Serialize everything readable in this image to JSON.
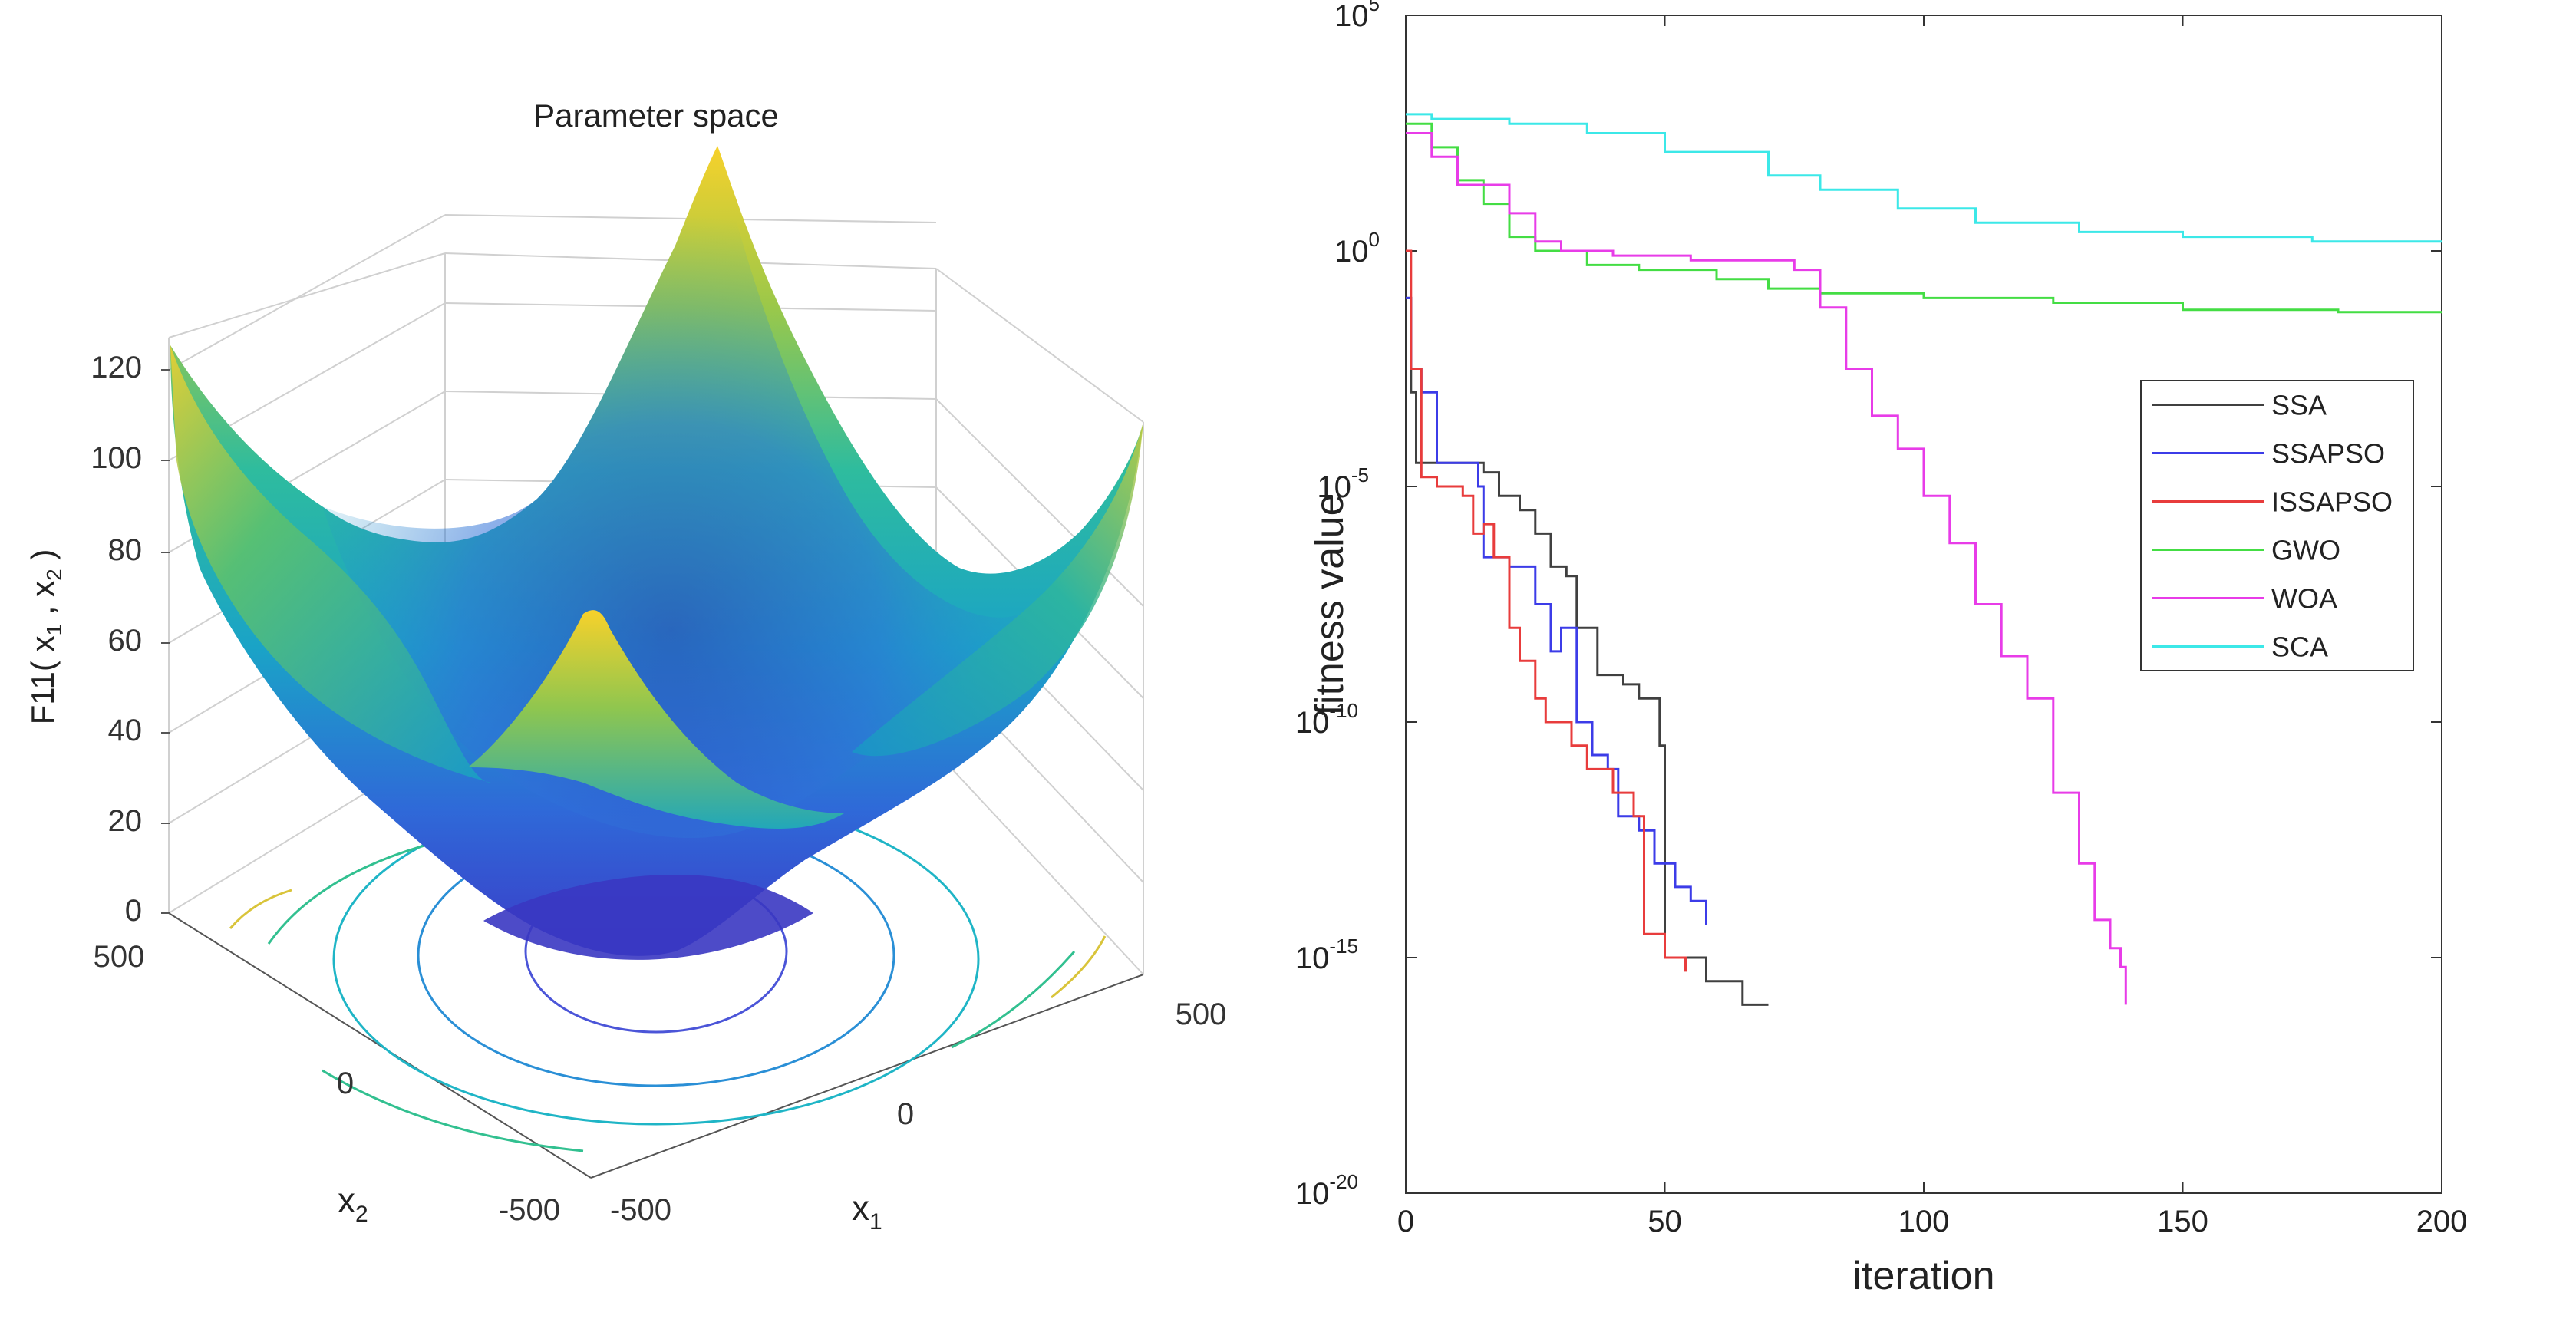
{
  "surface_plot": {
    "title": "Parameter space",
    "zlabel_pre": "F11( x",
    "zlabel_sub1": "1",
    "zlabel_mid": " , x",
    "zlabel_sub2": "2",
    "zlabel_post": " )",
    "xlabel": "x",
    "xlabel_sub": "1",
    "ylabel": "x",
    "ylabel_sub": "2",
    "zticks": [
      "0",
      "20",
      "40",
      "60",
      "80",
      "100",
      "120"
    ],
    "x1_ticks": [
      "-500",
      "0",
      "500"
    ],
    "x2_ticks": [
      "500",
      "0",
      "-500"
    ]
  },
  "chart_data": {
    "type": "line",
    "title": "",
    "xlabel": "iteration",
    "ylabel": "fitness value",
    "xlim": [
      0,
      200
    ],
    "ylim_log10": [
      -20,
      5
    ],
    "yscale": "log",
    "x_ticks": [
      "0",
      "50",
      "100",
      "150",
      "200"
    ],
    "y_ticks": [
      {
        "base": "10",
        "exp": "5"
      },
      {
        "base": "10",
        "exp": "0"
      },
      {
        "base": "10",
        "exp": "-5"
      },
      {
        "base": "10",
        "exp": "-10"
      },
      {
        "base": "10",
        "exp": "-15"
      },
      {
        "base": "10",
        "exp": "-20"
      }
    ],
    "legend_position": "middle-right",
    "series": [
      {
        "name": "SSA",
        "color": "#404040",
        "points_log10": [
          [
            0,
            -1
          ],
          [
            1,
            -3
          ],
          [
            2,
            -4.5
          ],
          [
            10,
            -4.5
          ],
          [
            15,
            -4.7
          ],
          [
            18,
            -5.2
          ],
          [
            22,
            -5.5
          ],
          [
            25,
            -6
          ],
          [
            28,
            -6.7
          ],
          [
            31,
            -6.9
          ],
          [
            33,
            -8
          ],
          [
            37,
            -9
          ],
          [
            42,
            -9.2
          ],
          [
            45,
            -9.5
          ],
          [
            49,
            -10.5
          ],
          [
            50,
            -15
          ],
          [
            55,
            -15
          ],
          [
            58,
            -15.5
          ],
          [
            62,
            -15.5
          ],
          [
            65,
            -16
          ],
          [
            70,
            -16
          ]
        ]
      },
      {
        "name": "SSAPSO",
        "color": "#3c3ce8",
        "points_log10": [
          [
            0,
            -1
          ],
          [
            1,
            -2.5
          ],
          [
            3,
            -3
          ],
          [
            4,
            -3
          ],
          [
            6,
            -4.5
          ],
          [
            12,
            -4.5
          ],
          [
            14,
            -5
          ],
          [
            15,
            -6.5
          ],
          [
            20,
            -6.7
          ],
          [
            25,
            -7.5
          ],
          [
            28,
            -8.5
          ],
          [
            30,
            -8
          ],
          [
            33,
            -10
          ],
          [
            36,
            -10.7
          ],
          [
            39,
            -11
          ],
          [
            41,
            -12
          ],
          [
            45,
            -12.3
          ],
          [
            48,
            -13
          ],
          [
            52,
            -13.5
          ],
          [
            55,
            -13.8
          ],
          [
            58,
            -14.3
          ]
        ]
      },
      {
        "name": "ISSAPSO",
        "color": "#e83c3c",
        "points_log10": [
          [
            0,
            0
          ],
          [
            1,
            -2.5
          ],
          [
            3,
            -4.8
          ],
          [
            6,
            -5
          ],
          [
            11,
            -5.2
          ],
          [
            13,
            -6
          ],
          [
            15,
            -5.8
          ],
          [
            17,
            -6.5
          ],
          [
            20,
            -8
          ],
          [
            22,
            -8.7
          ],
          [
            25,
            -9.5
          ],
          [
            27,
            -10
          ],
          [
            30,
            -10
          ],
          [
            32,
            -10.5
          ],
          [
            35,
            -11
          ],
          [
            40,
            -11.5
          ],
          [
            44,
            -12
          ],
          [
            46,
            -14.5
          ],
          [
            50,
            -15
          ],
          [
            52,
            -15
          ],
          [
            54,
            -15.3
          ]
        ]
      },
      {
        "name": "GWO",
        "color": "#44dd44",
        "points_log10": [
          [
            0,
            2.7
          ],
          [
            5,
            2.2
          ],
          [
            10,
            1.5
          ],
          [
            15,
            1.0
          ],
          [
            20,
            0.3
          ],
          [
            25,
            0
          ],
          [
            35,
            -0.3
          ],
          [
            45,
            -0.4
          ],
          [
            60,
            -0.6
          ],
          [
            70,
            -0.8
          ],
          [
            80,
            -0.9
          ],
          [
            100,
            -1.0
          ],
          [
            125,
            -1.1
          ],
          [
            150,
            -1.25
          ],
          [
            180,
            -1.3
          ],
          [
            200,
            -1.3
          ]
        ]
      },
      {
        "name": "WOA",
        "color": "#e83ce8",
        "points_log10": [
          [
            0,
            2.5
          ],
          [
            5,
            2.0
          ],
          [
            10,
            1.4
          ],
          [
            20,
            0.8
          ],
          [
            25,
            0.2
          ],
          [
            30,
            0
          ],
          [
            40,
            -0.1
          ],
          [
            55,
            -0.2
          ],
          [
            70,
            -0.2
          ],
          [
            75,
            -0.4
          ],
          [
            80,
            -1.2
          ],
          [
            85,
            -2.5
          ],
          [
            90,
            -3.5
          ],
          [
            95,
            -4.2
          ],
          [
            100,
            -5.2
          ],
          [
            105,
            -6.2
          ],
          [
            110,
            -7.5
          ],
          [
            115,
            -8.6
          ],
          [
            120,
            -9.5
          ],
          [
            125,
            -11.5
          ],
          [
            130,
            -13
          ],
          [
            133,
            -14.2
          ],
          [
            136,
            -14.8
          ],
          [
            138,
            -15.2
          ],
          [
            139,
            -16
          ]
        ]
      },
      {
        "name": "SCA",
        "color": "#3ce8e8",
        "points_log10": [
          [
            0,
            2.9
          ],
          [
            5,
            2.8
          ],
          [
            20,
            2.7
          ],
          [
            35,
            2.5
          ],
          [
            50,
            2.1
          ],
          [
            70,
            1.6
          ],
          [
            80,
            1.3
          ],
          [
            95,
            0.9
          ],
          [
            110,
            0.6
          ],
          [
            130,
            0.4
          ],
          [
            150,
            0.3
          ],
          [
            175,
            0.2
          ],
          [
            200,
            0.2
          ]
        ]
      }
    ]
  }
}
